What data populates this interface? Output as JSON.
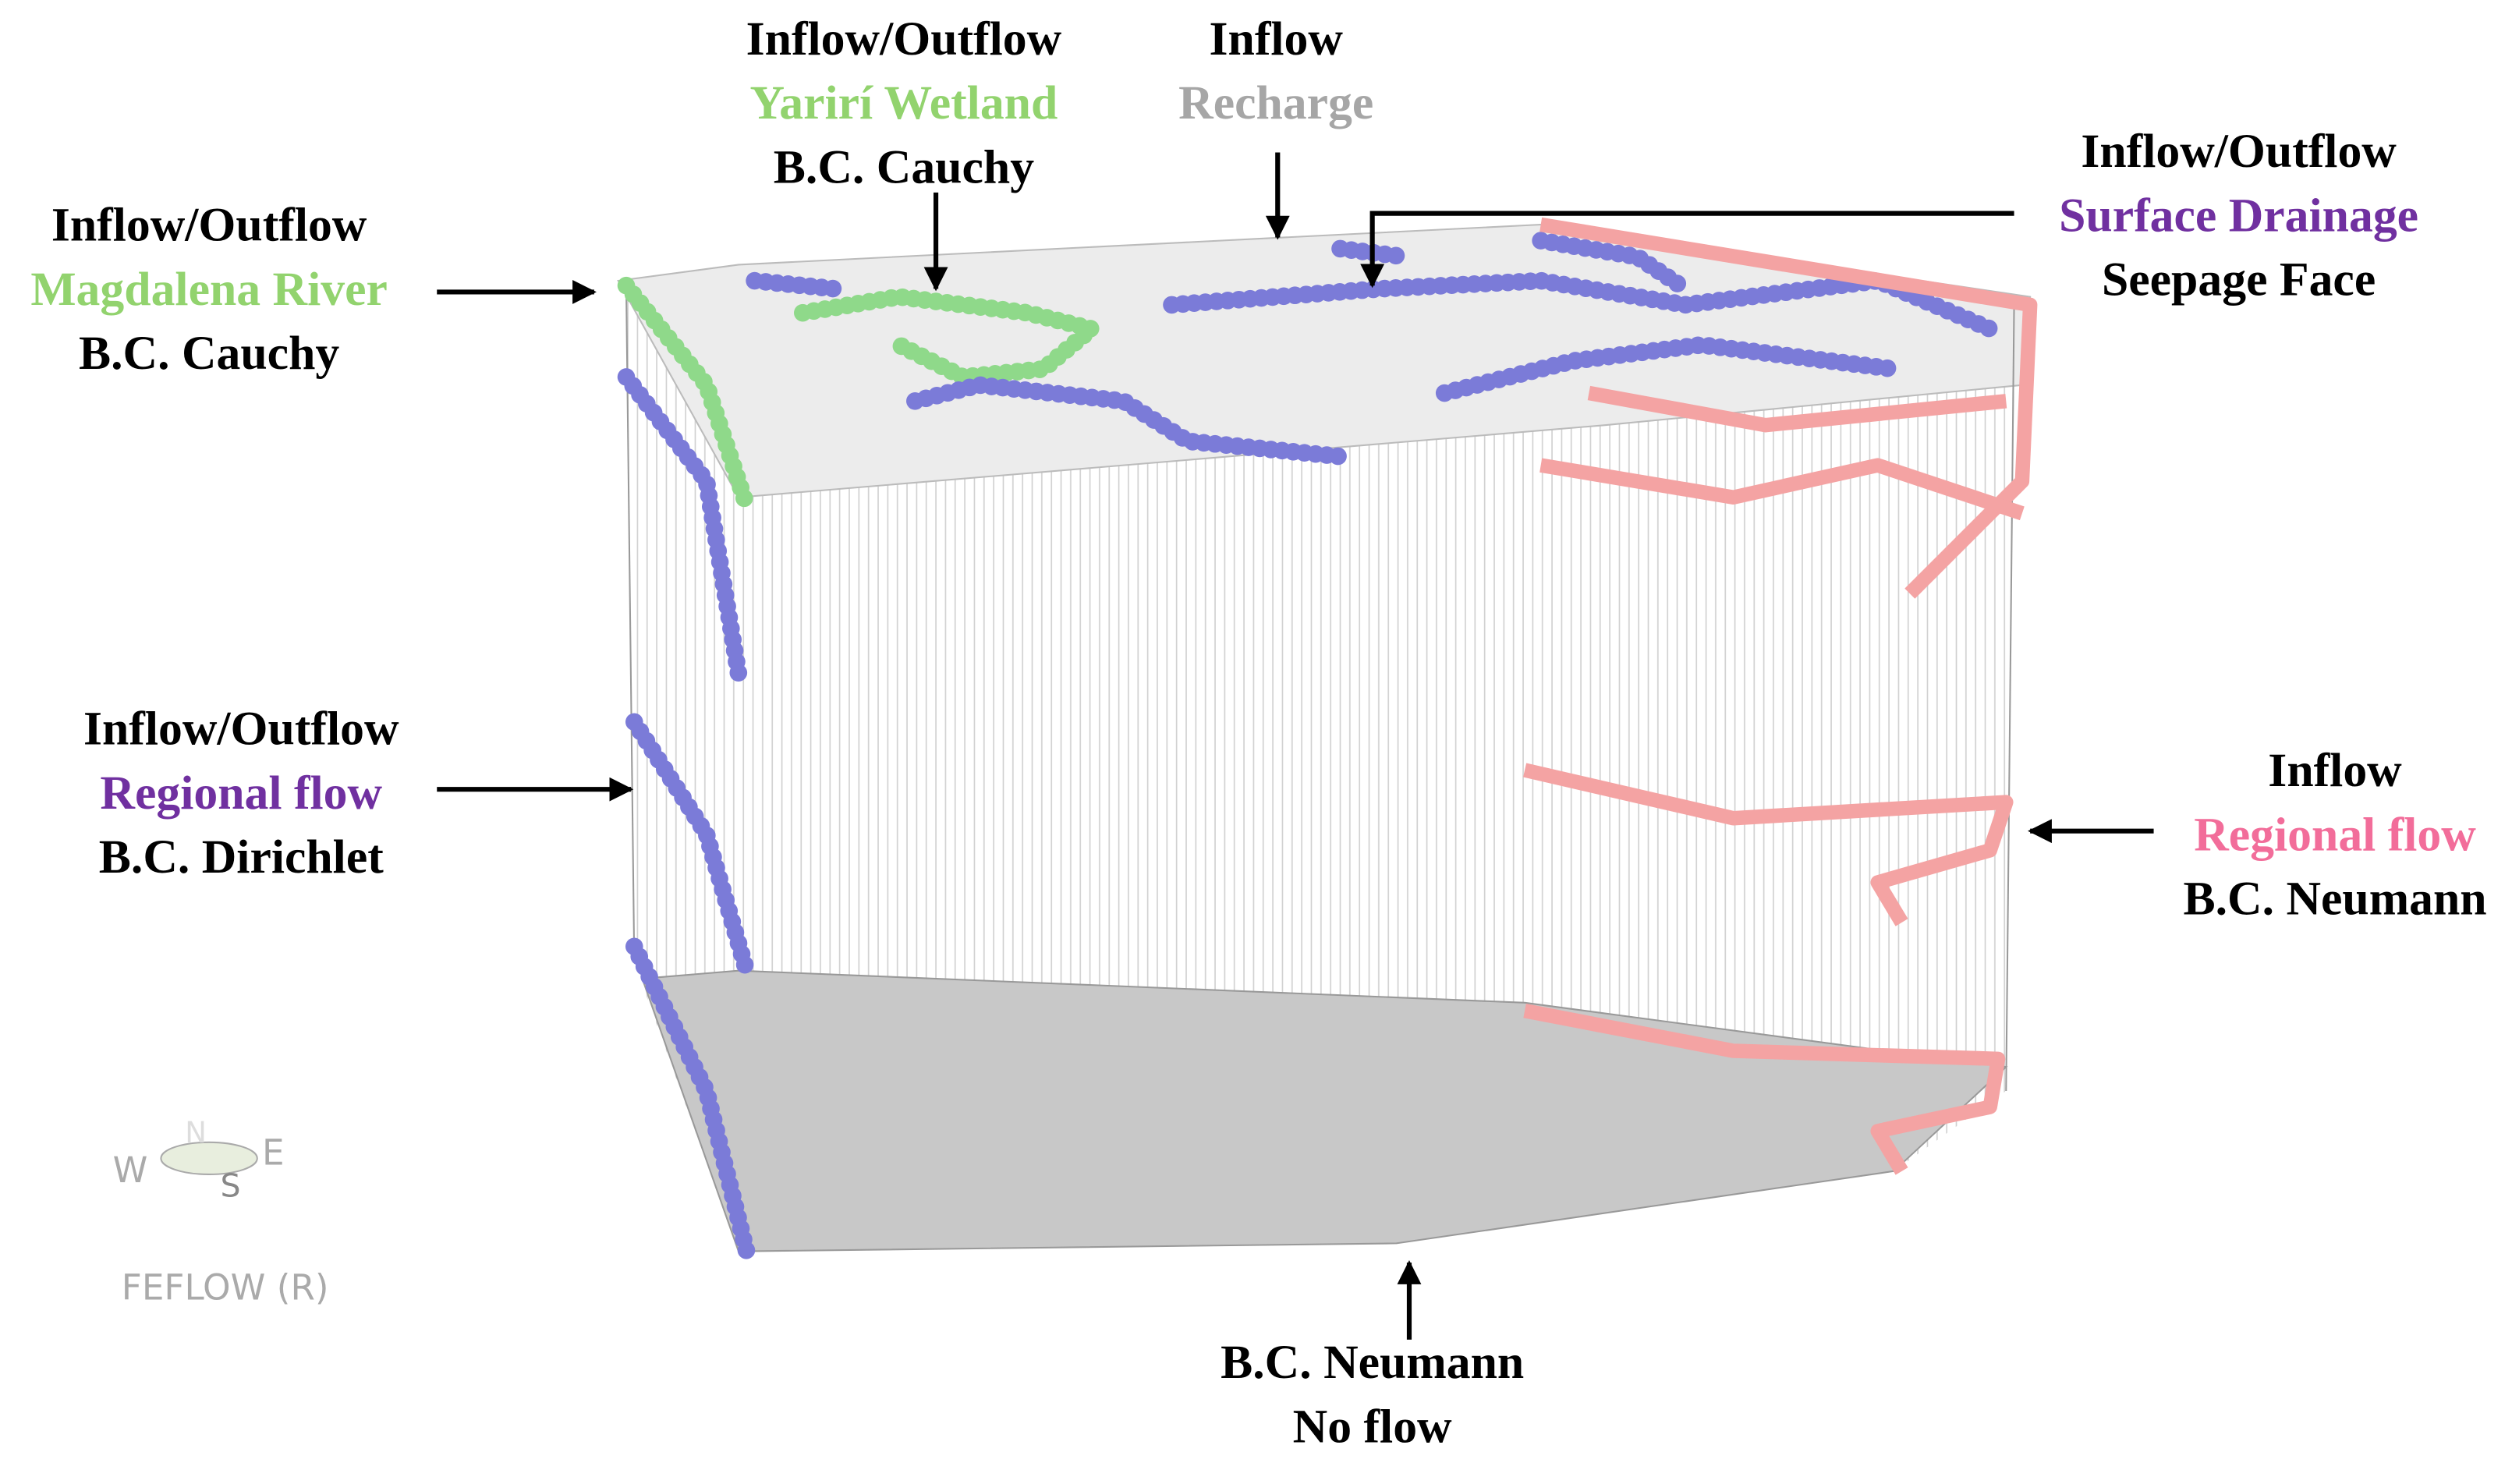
{
  "labels": [
    {
      "lines": [
        "Inflow/Outflow",
        "Magdalena River",
        "B.C. Cauchy"
      ],
      "colors": [
        "#000000",
        "#92d36e",
        "#000000"
      ]
    },
    {
      "lines": [
        "Inflow/Outflow",
        "Yarirí Wetland",
        "B.C. Cauchy"
      ],
      "colors": [
        "#000000",
        "#92d36e",
        "#000000"
      ]
    },
    {
      "lines": [
        "Inflow",
        "Recharge"
      ],
      "colors": [
        "#000000",
        "#a6a6a6"
      ]
    },
    {
      "lines": [
        "Inflow/Outflow",
        "Surface Drainage",
        "Seepage Face"
      ],
      "colors": [
        "#000000",
        "#7030a0",
        "#000000"
      ]
    },
    {
      "lines": [
        "Inflow/Outflow",
        "Regional flow",
        "B.C. Dirichlet"
      ],
      "colors": [
        "#000000",
        "#7030a0",
        "#000000"
      ]
    },
    {
      "lines": [
        "Inflow",
        "Regional flow",
        "B.C. Neumann"
      ],
      "colors": [
        "#000000",
        "#f26d9a",
        "#000000"
      ]
    },
    {
      "lines": [
        "B.C. Neumann",
        "No flow"
      ],
      "colors": [
        "#000000",
        "#000000"
      ]
    }
  ],
  "compass": {
    "n": "N",
    "e": "E",
    "w": "W",
    "s": "S"
  },
  "software": "FEFLOW (R)"
}
